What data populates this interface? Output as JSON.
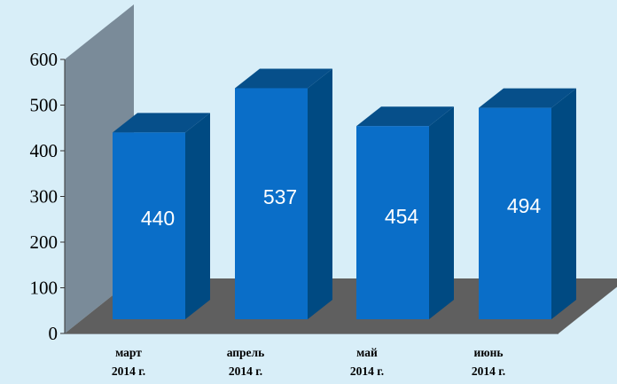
{
  "chart_data": {
    "type": "bar",
    "title": "",
    "xlabel": "",
    "ylabel": "",
    "categories": [
      [
        "март",
        "2014 г."
      ],
      [
        "апрель",
        "2014 г."
      ],
      [
        "май",
        "2014 г."
      ],
      [
        "июнь",
        "2014 г."
      ]
    ],
    "values": [
      440,
      537,
      454,
      494
    ],
    "ylim": [
      0,
      600
    ],
    "yticks": [
      0,
      100,
      200,
      300,
      400,
      500,
      600
    ],
    "data_labels": [
      "440",
      "537",
      "454",
      "494"
    ],
    "grid": false,
    "legend": "none",
    "colors": {
      "bar_front": "#0a6ec8",
      "bar_side": "#004a82",
      "bar_top": "#064f8a",
      "wall": "#7a8b99",
      "floor": "#5f5f5f",
      "background": "#d8eef8"
    }
  }
}
